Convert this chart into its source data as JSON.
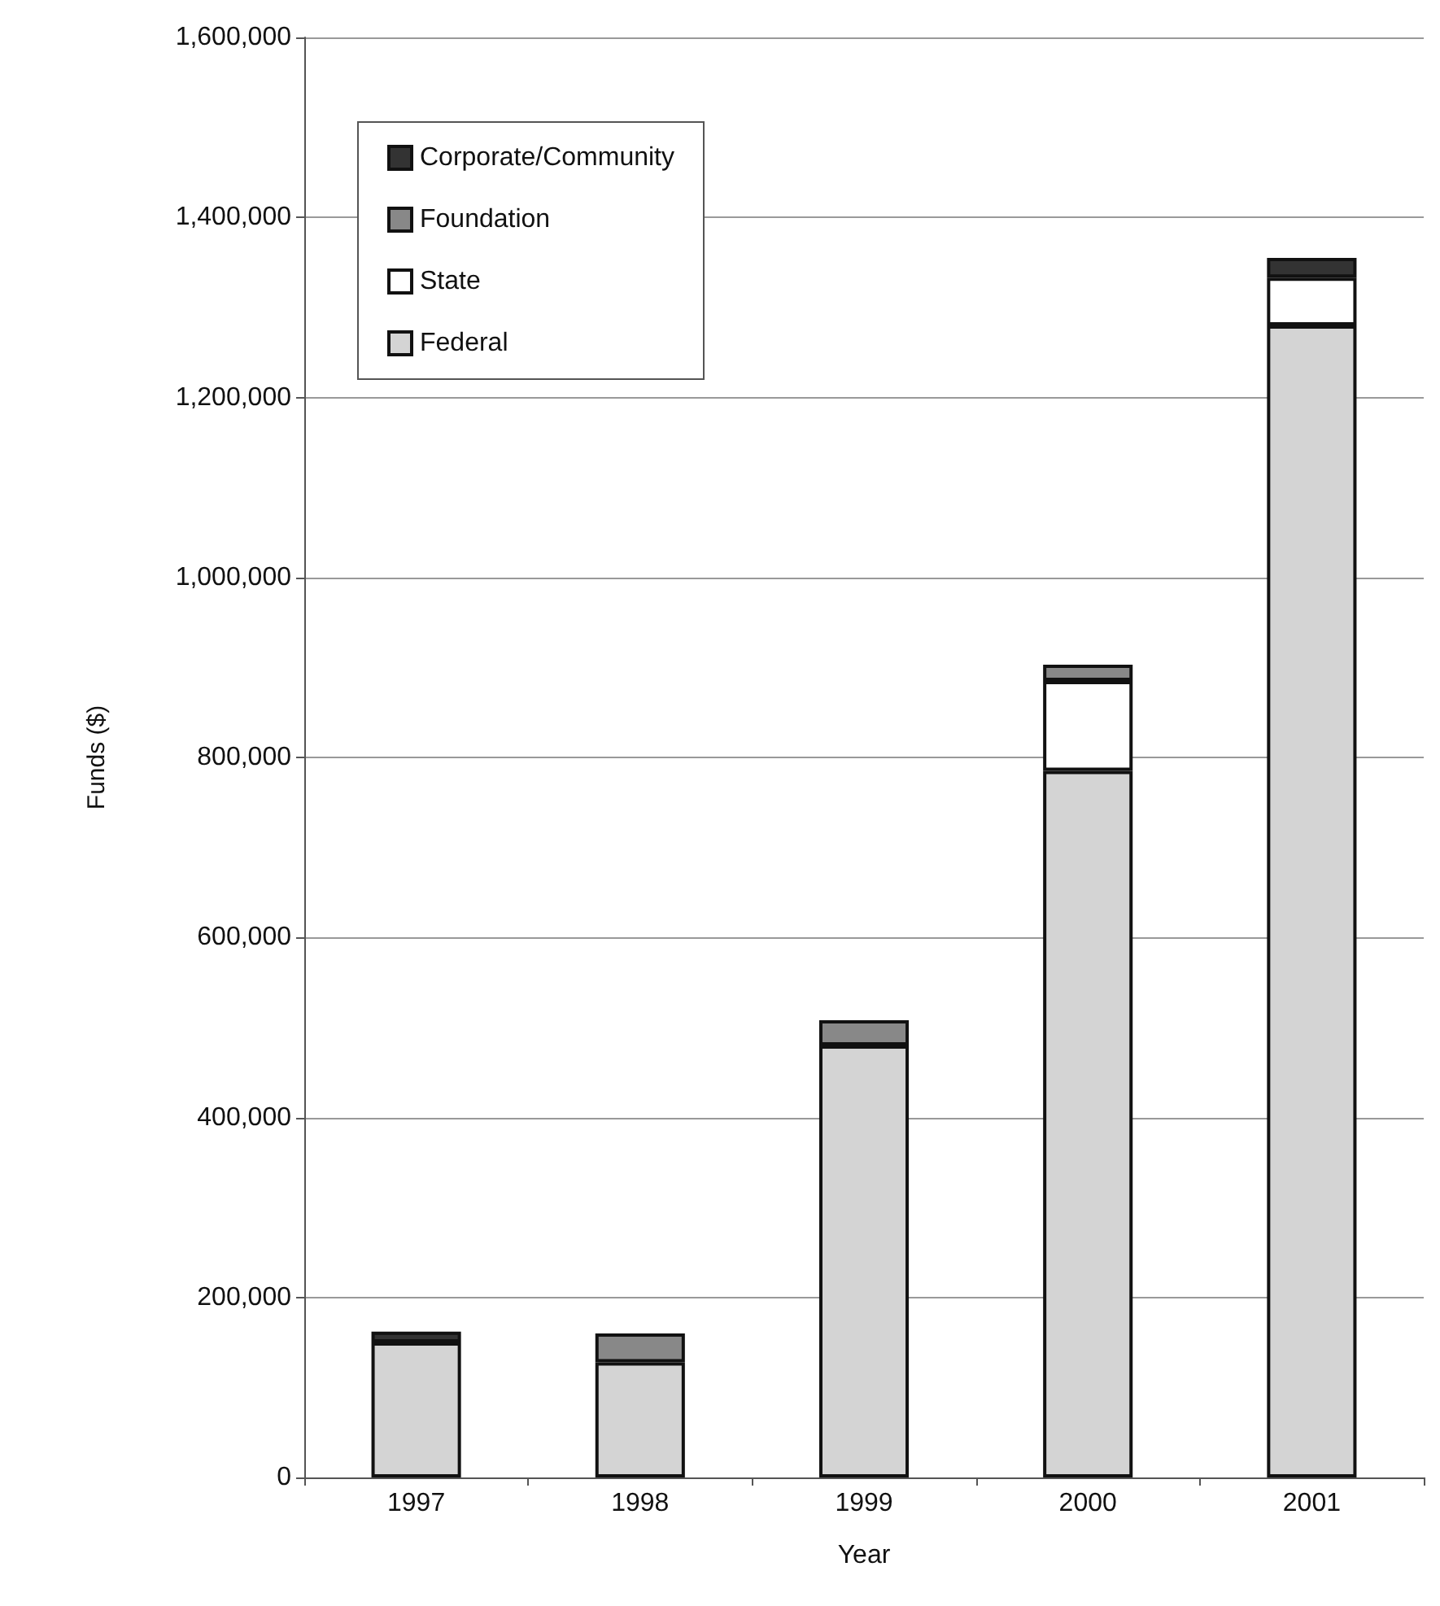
{
  "chart_data": {
    "type": "bar",
    "stacked": true,
    "xlabel": "Year",
    "ylabel": "Funds ($)",
    "categories": [
      "1997",
      "1998",
      "1999",
      "2000",
      "2001"
    ],
    "series": [
      {
        "name": "Federal",
        "color": "#d4d4d4",
        "values": [
          150000,
          128000,
          480000,
          785000,
          1280000
        ]
      },
      {
        "name": "State",
        "color": "#ffffff",
        "values": [
          null,
          null,
          null,
          100000,
          53000
        ]
      },
      {
        "name": "Foundation",
        "color": "#888888",
        "values": [
          null,
          32000,
          28000,
          18000,
          null
        ]
      },
      {
        "name": "Corporate/Community",
        "color": "#333333",
        "values": [
          12000,
          null,
          null,
          null,
          22000
        ]
      }
    ],
    "ylim": [
      0,
      1600000
    ],
    "yticks": [
      0,
      {
        "value": 200000,
        "label": "200,000"
      },
      {
        "value": 400000,
        "label": "400,000"
      },
      {
        "value": 600000,
        "label": "600,000"
      },
      {
        "value": 800000,
        "label": "800,000"
      },
      {
        "value": 1000000,
        "label": "1,000,000"
      },
      {
        "value": 1200000,
        "label": "1,200,000"
      },
      {
        "value": 1400000,
        "label": "1,400,000"
      },
      {
        "value": 1600000,
        "label": "1,600,000"
      }
    ],
    "grid": "y",
    "legend": "top left"
  }
}
